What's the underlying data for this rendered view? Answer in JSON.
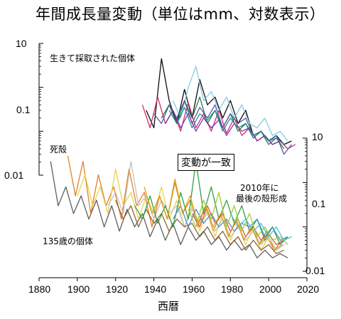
{
  "chart_data": [
    {
      "type": "line",
      "title": "年間成長量変動（単位はmm、対数表示）",
      "xlabel": "西暦",
      "x_ticks": [
        "1880",
        "1900",
        "1920",
        "1940",
        "1960",
        "1980",
        "2000",
        "2020"
      ],
      "xlim": [
        1880,
        2020
      ],
      "y_scale": "log",
      "y_axis": "left",
      "y_ticks": [
        "10",
        "0.1",
        "0.01"
      ],
      "ylim": [
        0.01,
        10
      ],
      "annotation": "生きて採取された個体",
      "series": [
        {
          "color": "#000000",
          "x": [
            1936,
            1940,
            1944,
            1948,
            1952,
            1956,
            1960,
            1964,
            1968,
            1972,
            1976,
            1980,
            1984,
            1988,
            1992,
            1996,
            2000,
            2004,
            2008,
            2012
          ],
          "values": [
            0.3,
            0.12,
            4.5,
            0.5,
            0.15,
            0.9,
            0.2,
            1.5,
            0.4,
            0.6,
            0.2,
            0.5,
            0.15,
            0.3,
            0.08,
            0.1,
            0.06,
            0.08,
            0.05,
            0.06
          ]
        },
        {
          "color": "#d0206a",
          "x": [
            1934,
            1938,
            1942,
            1946,
            1950,
            1954,
            1958,
            1962,
            1966,
            1970,
            1974,
            1978,
            1982,
            1986,
            1990,
            1994,
            1998,
            2002,
            2006,
            2010,
            2014
          ],
          "values": [
            0.4,
            0.12,
            0.6,
            0.15,
            0.3,
            0.1,
            0.45,
            0.12,
            0.25,
            0.1,
            0.3,
            0.09,
            0.2,
            0.08,
            0.12,
            0.06,
            0.08,
            0.05,
            0.06,
            0.04,
            0.05
          ]
        },
        {
          "color": "#7ec8e3",
          "x": [
            1950,
            1954,
            1958,
            1962,
            1966,
            1970,
            1974,
            1978,
            1982,
            1986,
            1990,
            1994,
            1998,
            2002,
            2006,
            2010
          ],
          "values": [
            0.5,
            0.2,
            1.0,
            3.0,
            0.5,
            0.8,
            0.3,
            0.6,
            0.2,
            0.4,
            0.15,
            0.12,
            0.2,
            0.08,
            0.1,
            0.06
          ]
        },
        {
          "color": "#1a7a3c",
          "x": [
            1944,
            1948,
            1952,
            1956,
            1960,
            1964,
            1968,
            1972,
            1976,
            1980,
            1984,
            1988,
            1992,
            1996,
            2000,
            2004,
            2008
          ],
          "values": [
            0.2,
            0.4,
            0.15,
            0.5,
            0.2,
            0.6,
            0.15,
            0.3,
            0.12,
            0.25,
            0.1,
            0.15,
            0.07,
            0.1,
            0.05,
            0.07,
            0.04
          ]
        },
        {
          "color": "#5050a0",
          "x": [
            1940,
            1944,
            1948,
            1952,
            1956,
            1960,
            1964,
            1968,
            1972,
            1976,
            1980,
            1984,
            1988,
            1992,
            1996,
            2000,
            2004,
            2008,
            2012
          ],
          "values": [
            0.25,
            0.15,
            0.4,
            0.2,
            0.5,
            0.15,
            0.35,
            0.2,
            0.4,
            0.12,
            0.25,
            0.15,
            0.2,
            0.08,
            0.1,
            0.06,
            0.08,
            0.03,
            0.05
          ]
        },
        {
          "color": "#7a2ca8",
          "x": [
            1946,
            1950,
            1954,
            1958,
            1962,
            1966,
            1970,
            1974,
            1978,
            1982,
            1986,
            1990,
            1994,
            1998,
            2002,
            2006
          ],
          "values": [
            0.15,
            0.3,
            0.12,
            0.25,
            0.1,
            0.2,
            0.12,
            0.18,
            0.08,
            0.15,
            0.1,
            0.12,
            0.06,
            0.08,
            0.05,
            0.06
          ]
        },
        {
          "color": "#1a8a8a",
          "x": [
            1948,
            1952,
            1956,
            1960,
            1964,
            1968,
            1972,
            1976,
            1980,
            1984,
            1988,
            1992,
            1996,
            2000,
            2004,
            2008
          ],
          "values": [
            0.3,
            0.15,
            0.35,
            0.12,
            0.25,
            0.18,
            0.3,
            0.1,
            0.2,
            0.12,
            0.15,
            0.08,
            0.1,
            0.06,
            0.07,
            0.05
          ]
        }
      ]
    },
    {
      "type": "line",
      "y_scale": "log",
      "y_axis": "right",
      "y_ticks": [
        "10",
        "0.1",
        "0.01"
      ],
      "ylim": [
        0.01,
        10
      ],
      "annotations": [
        "死殻",
        "2010年に",
        "最後の殻形成",
        "135歳の個体"
      ],
      "series": [
        {
          "color": "#555555",
          "x": [
            1886,
            1890,
            1894,
            1898,
            1902,
            1906,
            1910,
            1914,
            1918,
            1922,
            1926,
            1930,
            1934,
            1938,
            1942,
            1946,
            1950,
            1954,
            1958,
            1962,
            1966,
            1970,
            1974,
            1978,
            1982,
            1986,
            1990,
            1994,
            1998,
            2002,
            2006,
            2010
          ],
          "values": [
            3.0,
            0.3,
            0.8,
            0.2,
            0.5,
            0.15,
            0.4,
            0.1,
            0.3,
            0.08,
            0.25,
            0.1,
            0.2,
            0.06,
            0.15,
            0.05,
            0.12,
            0.04,
            0.1,
            0.05,
            0.08,
            0.04,
            0.06,
            0.03,
            0.05,
            0.03,
            0.04,
            0.02,
            0.03,
            0.02,
            0.025,
            0.02
          ]
        },
        {
          "color": "#e07a1a",
          "x": [
            1895,
            1899,
            1903,
            1907,
            1911,
            1915,
            1919,
            1923,
            1927,
            1931,
            1935,
            1939,
            1943,
            1947,
            1951,
            1955,
            1959,
            1963,
            1967,
            1971,
            1975,
            1979,
            1983,
            1987,
            1991,
            1995,
            1999,
            2003,
            2007
          ],
          "values": [
            4.0,
            0.5,
            3.0,
            0.2,
            1.5,
            0.3,
            0.8,
            0.15,
            2.0,
            0.3,
            0.6,
            0.1,
            0.5,
            0.15,
            1.0,
            0.2,
            0.4,
            0.1,
            0.3,
            0.08,
            0.2,
            0.06,
            0.15,
            0.05,
            0.1,
            0.04,
            0.08,
            0.03,
            0.05
          ]
        },
        {
          "color": "#e8d24a",
          "x": [
            1900,
            1904,
            1908,
            1912,
            1916,
            1920,
            1924,
            1928,
            1932,
            1936,
            1940,
            1944,
            1948,
            1952,
            1956,
            1960,
            1964,
            1968,
            1972,
            1976,
            1980,
            1984,
            1988,
            1992,
            1996,
            2000,
            2004,
            2008
          ],
          "values": [
            0.5,
            1.5,
            0.3,
            0.8,
            0.2,
            2.0,
            0.3,
            0.6,
            0.15,
            0.5,
            0.2,
            0.8,
            0.15,
            0.4,
            0.1,
            0.3,
            0.08,
            0.25,
            0.06,
            0.2,
            0.05,
            0.12,
            0.04,
            0.1,
            0.03,
            0.06,
            0.03,
            0.04
          ]
        },
        {
          "color": "#c0c0c0",
          "x": [
            1916,
            1920,
            1924,
            1928,
            1932,
            1936,
            1940,
            1944,
            1948,
            1952,
            1956,
            1960,
            1964,
            1968,
            1972,
            1976,
            1980,
            1984,
            1988,
            1992,
            1996,
            2000,
            2004,
            2008
          ],
          "values": [
            0.3,
            0.6,
            0.2,
            3.0,
            0.3,
            0.5,
            0.15,
            0.4,
            0.2,
            0.3,
            0.1,
            0.25,
            0.12,
            0.2,
            0.08,
            0.15,
            0.06,
            0.1,
            0.05,
            0.08,
            0.04,
            0.06,
            0.03,
            0.04
          ]
        },
        {
          "color": "#8a5a2a",
          "x": [
            1920,
            1924,
            1928,
            1932,
            1936,
            1940,
            1944,
            1948,
            1952,
            1956,
            1960,
            1964,
            1968,
            1972,
            1976,
            1980,
            1984,
            1988,
            1992,
            1996,
            2000,
            2004,
            2008
          ],
          "values": [
            0.4,
            0.15,
            0.3,
            0.1,
            0.25,
            0.12,
            0.2,
            0.08,
            0.15,
            0.1,
            0.12,
            0.06,
            0.1,
            0.05,
            0.08,
            0.04,
            0.06,
            0.03,
            0.05,
            0.03,
            0.04,
            0.025,
            0.03
          ]
        },
        {
          "color": "#2a9a3a",
          "x": [
            1930,
            1934,
            1938,
            1942,
            1946,
            1950,
            1954,
            1958,
            1962,
            1966,
            1970,
            1974,
            1978,
            1982,
            1986,
            1990,
            1994,
            1998,
            2002,
            2006,
            2010
          ],
          "values": [
            0.3,
            0.15,
            0.5,
            0.12,
            0.3,
            0.1,
            0.6,
            0.15,
            3.0,
            0.2,
            0.8,
            0.15,
            0.4,
            0.12,
            0.3,
            0.08,
            0.15,
            0.05,
            0.1,
            0.04,
            0.06
          ]
        },
        {
          "color": "#3a8ad0",
          "x": [
            1950,
            1954,
            1958,
            1962,
            1966,
            1970,
            1974,
            1978,
            1982,
            1986,
            1990,
            1994,
            1998,
            2002,
            2006,
            2010
          ],
          "values": [
            0.15,
            0.3,
            0.1,
            0.25,
            0.12,
            0.2,
            0.1,
            0.15,
            0.08,
            0.12,
            0.1,
            0.15,
            0.06,
            0.1,
            0.05,
            0.06
          ]
        },
        {
          "color": "#e04a4a",
          "x": [
            1960,
            1964,
            1968,
            1972,
            1976,
            1980,
            1984,
            1988,
            1992,
            1996,
            2000,
            2004,
            2008
          ],
          "values": [
            0.2,
            0.1,
            0.3,
            0.12,
            0.2,
            0.08,
            0.15,
            0.06,
            0.1,
            0.05,
            0.07,
            0.04,
            0.05
          ]
        },
        {
          "color": "#9acd32",
          "x": [
            1958,
            1962,
            1966,
            1970,
            1974,
            1978,
            1982,
            1986,
            1990,
            1994,
            1998,
            2002,
            2006,
            2010
          ],
          "values": [
            0.25,
            0.1,
            0.4,
            0.15,
            0.6,
            0.1,
            0.3,
            0.08,
            0.2,
            0.06,
            0.1,
            0.05,
            0.06,
            0.04
          ]
        },
        {
          "color": "#4ab8d8",
          "x": [
            1980,
            1984,
            1988,
            1992,
            1996,
            2000,
            2004,
            2008,
            2012
          ],
          "values": [
            0.2,
            0.1,
            0.15,
            0.08,
            0.12,
            0.06,
            0.1,
            0.05,
            0.06
          ]
        },
        {
          "color": "#d4a017",
          "x": [
            1935,
            1939,
            1943,
            1947,
            1951,
            1955,
            1959,
            1963,
            1967,
            1971,
            1975,
            1979,
            1983,
            1987,
            1991,
            1995,
            1999,
            2003,
            2007
          ],
          "values": [
            0.8,
            0.2,
            0.5,
            0.15,
            1.2,
            0.2,
            0.5,
            0.12,
            0.3,
            0.1,
            0.2,
            0.06,
            0.15,
            0.05,
            0.1,
            0.04,
            0.06,
            0.03,
            0.04
          ]
        }
      ]
    }
  ],
  "center_label": "変動が一致"
}
